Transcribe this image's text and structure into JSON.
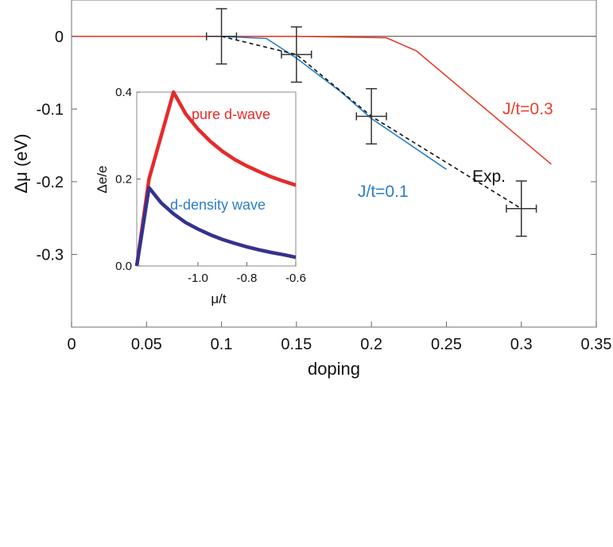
{
  "chart_data": [
    {
      "type": "line",
      "xlabel": "doping",
      "ylabel": "Δμ (eV)",
      "xlim": [
        0,
        0.35
      ],
      "ylim": [
        -0.4,
        0.05
      ],
      "xticks": [
        0,
        0.05,
        0.1,
        0.15,
        0.2,
        0.25,
        0.3,
        0.35
      ],
      "xtick_labels": [
        "0",
        "0.05",
        "0.1",
        "0.15",
        "0.2",
        "0.25",
        "0.3",
        "0.35"
      ],
      "yticks": [
        0,
        -0.1,
        -0.2,
        -0.3
      ],
      "ytick_labels": [
        "0",
        "-0.1",
        "-0.2",
        "-0.3"
      ],
      "grid": false,
      "reference_line_y": 0,
      "series": [
        {
          "name": "J/t=0.3",
          "color": "#e8412c",
          "style": "solid",
          "x": [
            0,
            0.1,
            0.15,
            0.21,
            0.23,
            0.32
          ],
          "y": [
            0,
            0,
            0,
            -0.002,
            -0.02,
            -0.176
          ]
        },
        {
          "name": "J/t=0.1",
          "color": "#2a7fc7",
          "style": "solid",
          "x": [
            0.1,
            0.13,
            0.15,
            0.18,
            0.2,
            0.25
          ],
          "y": [
            0,
            -0.003,
            -0.03,
            -0.077,
            -0.113,
            -0.183
          ]
        },
        {
          "name": "Exp.",
          "color": "#111111",
          "style": "dashed",
          "x": [
            0.1,
            0.15,
            0.2,
            0.3
          ],
          "y": [
            0,
            -0.025,
            -0.11,
            -0.237
          ]
        }
      ],
      "error_points": [
        {
          "x": 0.1,
          "y": 0.0,
          "xerr": 0.01,
          "yerr": 0.038
        },
        {
          "x": 0.15,
          "y": -0.025,
          "xerr": 0.01,
          "yerr": 0.038
        },
        {
          "x": 0.2,
          "y": -0.11,
          "xerr": 0.01,
          "yerr": 0.038
        },
        {
          "x": 0.3,
          "y": -0.237,
          "xerr": 0.01,
          "yerr": 0.038
        }
      ],
      "annotations": [
        {
          "text": "J/t=0.3",
          "color": "#e8412c"
        },
        {
          "text": "J/t=0.1",
          "color": "#2a7fc7"
        },
        {
          "text": "Exp.",
          "color": "#111111"
        }
      ]
    },
    {
      "type": "line",
      "role": "inset",
      "xlabel": "μ/t",
      "ylabel": "Δe/e",
      "xlim": [
        -1.25,
        -0.6
      ],
      "ylim": [
        0,
        0.4
      ],
      "xticks": [
        -1.0,
        -0.8,
        -0.6
      ],
      "xtick_labels": [
        "-1.0",
        "-0.8",
        "-0.6"
      ],
      "yticks": [
        0.0,
        0.2,
        0.4
      ],
      "ytick_labels": [
        "0.0",
        "0.2",
        "0.4"
      ],
      "series": [
        {
          "name": "pure d-wave",
          "color": "#e52b2b",
          "x": [
            -1.25,
            -1.2,
            -1.15,
            -1.1,
            -1.05,
            -1.0,
            -0.95,
            -0.9,
            -0.85,
            -0.8,
            -0.75,
            -0.7,
            -0.65,
            -0.6
          ],
          "y": [
            0.0,
            0.2,
            0.3,
            0.4,
            0.35,
            0.315,
            0.287,
            0.264,
            0.245,
            0.23,
            0.217,
            0.205,
            0.195,
            0.186
          ]
        },
        {
          "name": "d-density wave",
          "color": "#35328f",
          "x": [
            -1.25,
            -1.2,
            -1.15,
            -1.1,
            -1.05,
            -1.0,
            -0.95,
            -0.9,
            -0.85,
            -0.8,
            -0.75,
            -0.7,
            -0.65,
            -0.6
          ],
          "y": [
            0.0,
            0.18,
            0.145,
            0.12,
            0.1,
            0.085,
            0.072,
            0.061,
            0.052,
            0.044,
            0.037,
            0.031,
            0.026,
            0.02
          ]
        }
      ],
      "annotations": [
        {
          "text": "pure d-wave",
          "color": "#e52b2b"
        },
        {
          "text": "d-density wave",
          "color": "#2a7fc7"
        }
      ]
    }
  ]
}
